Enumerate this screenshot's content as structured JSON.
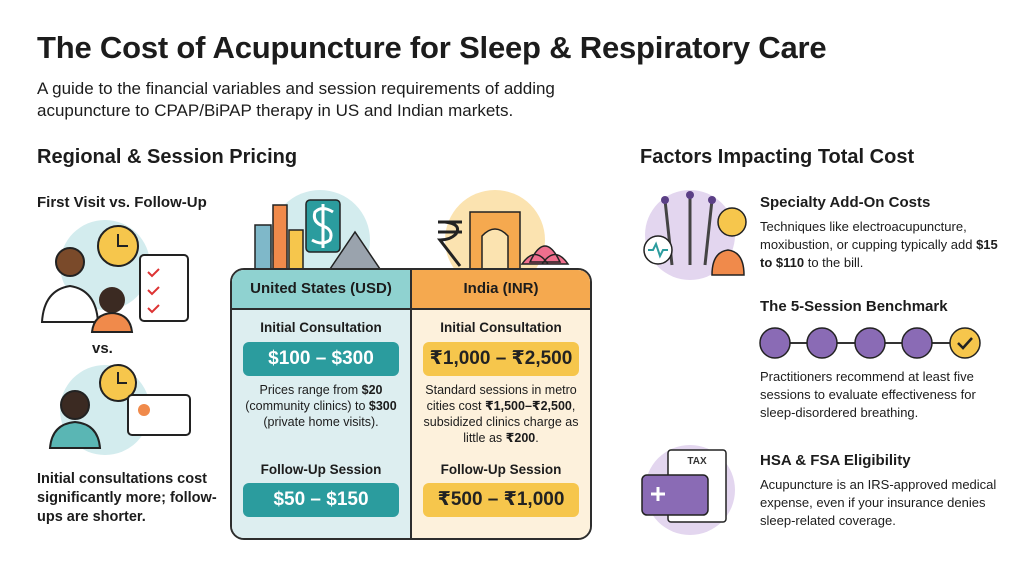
{
  "header": {
    "title": "The Cost of Acupuncture for Sleep & Respiratory Care",
    "subtitle": "A guide to the financial variables and session requirements of adding acupuncture to CPAP/BiPAP therapy in US and Indian markets."
  },
  "pricing": {
    "heading": "Regional & Session Pricing",
    "comparison": {
      "heading": "First Visit vs. Follow-Up",
      "vs": "vs.",
      "note": "Initial consultations cost significantly more; follow-ups are shorter."
    },
    "columns": [
      {
        "name": "United States (USD)",
        "initial_label": "Initial Consultation",
        "initial_price": "$100 – $300",
        "detail": [
          "Prices range from ",
          "$20",
          " (community clinics) to ",
          "$300",
          " (private home visits)."
        ],
        "followup_label": "Follow-Up Session",
        "followup_price": "$50 – $150"
      },
      {
        "name": "India (INR)",
        "initial_label": "Initial Consultation",
        "initial_price": "₹1,000 – ₹2,500",
        "detail": [
          "Standard sessions in metro cities cost ",
          "₹1,500–₹2,500",
          ", subsidized clinics charge as little as ",
          "₹200",
          "."
        ],
        "followup_label": "Follow-Up Session",
        "followup_price": "₹500 – ₹1,000"
      }
    ]
  },
  "factors": {
    "heading": "Factors Impacting Total Cost",
    "items": [
      {
        "title": "Specialty Add-On Costs",
        "body": [
          "Techniques like electroacupuncture, moxibustion, or cupping typically add ",
          "$15 to $110",
          " to the bill."
        ]
      },
      {
        "title": "The 5-Session Benchmark",
        "body": [
          "Practitioners recommend at least five sessions to evaluate effectiveness for sleep-disordered breathing."
        ]
      },
      {
        "title": "HSA & FSA Eligibility",
        "icon_text": "TAX",
        "body": [
          "Acupuncture is an IRS-approved medical expense, even if your insurance denies sleep-related coverage."
        ]
      }
    ]
  }
}
